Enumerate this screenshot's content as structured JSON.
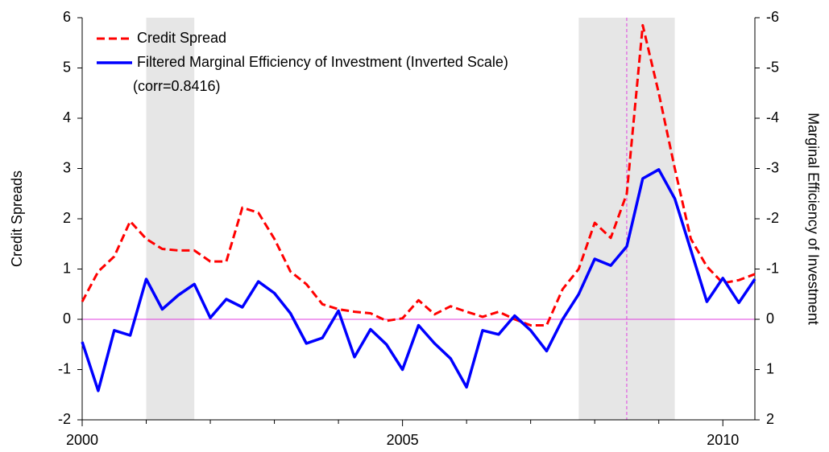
{
  "chart_data": {
    "type": "line",
    "ylabel": "Credit Spreads",
    "y2label": "Marginal Efficiency of Investment",
    "annotation": "(corr=0.8416)",
    "x": [
      2000,
      2000.25,
      2000.5,
      2000.75,
      2001,
      2001.25,
      2001.5,
      2001.75,
      2002,
      2002.25,
      2002.5,
      2002.75,
      2003,
      2003.25,
      2003.5,
      2003.75,
      2004,
      2004.25,
      2004.5,
      2004.75,
      2005,
      2005.25,
      2005.5,
      2005.75,
      2006,
      2006.25,
      2006.5,
      2006.75,
      2007,
      2007.25,
      2007.5,
      2007.75,
      2008,
      2008.25,
      2008.5,
      2008.75,
      2009,
      2009.25,
      2009.5,
      2009.75,
      2010,
      2010.25,
      2010.5
    ],
    "series": [
      {
        "name": "Credit Spread",
        "color": "#ff0000",
        "dashed": true,
        "values": [
          0.35,
          0.95,
          1.25,
          1.95,
          1.6,
          1.4,
          1.37,
          1.37,
          1.15,
          1.15,
          2.22,
          2.12,
          1.6,
          0.95,
          0.7,
          0.3,
          0.2,
          0.15,
          0.12,
          -0.03,
          0.02,
          0.38,
          0.1,
          0.26,
          0.15,
          0.05,
          0.15,
          0.0,
          -0.12,
          -0.12,
          0.6,
          1.0,
          1.92,
          1.62,
          2.5,
          5.85,
          4.5,
          3.0,
          1.6,
          1.05,
          0.72,
          0.78,
          0.9
        ]
      },
      {
        "name": "Filtered Marginal Efficiency of Investment (Inverted Scale)",
        "color": "#0000ff",
        "axis": "y2",
        "values": [
          0.45,
          1.42,
          0.22,
          0.32,
          -0.8,
          -0.2,
          -0.48,
          -0.7,
          -0.03,
          -0.4,
          -0.24,
          -0.75,
          -0.52,
          -0.12,
          0.48,
          0.37,
          -0.17,
          0.75,
          0.2,
          0.5,
          1.0,
          0.12,
          0.48,
          0.78,
          1.35,
          0.22,
          0.3,
          -0.07,
          0.22,
          0.63,
          0.0,
          -0.5,
          -1.2,
          -1.07,
          -1.45,
          -2.8,
          -2.98,
          -2.4,
          -1.38,
          -0.35,
          -0.82,
          -0.33,
          -0.8
        ]
      }
    ],
    "xlim": [
      2000,
      2010.5
    ],
    "xticks": [
      2000,
      2005,
      2010
    ],
    "xminor_ticks": [
      2001,
      2002,
      2003,
      2004,
      2006,
      2007,
      2008,
      2009
    ],
    "ylim": [
      -2,
      6
    ],
    "yticks": [
      -2,
      -1,
      0,
      1,
      2,
      3,
      4,
      5,
      6
    ],
    "y2lim": [
      2,
      -6
    ],
    "y2ticks": [
      2,
      1,
      0,
      -1,
      -2,
      -3,
      -4,
      -5,
      -6
    ],
    "shaded": [
      [
        2001,
        2001.75
      ],
      [
        2007.75,
        2009.25
      ]
    ],
    "shade_color": "#e6e6e6",
    "vline": 2008.5,
    "hline": 0,
    "ref_color": "#e040e0",
    "legend": "upper left"
  }
}
